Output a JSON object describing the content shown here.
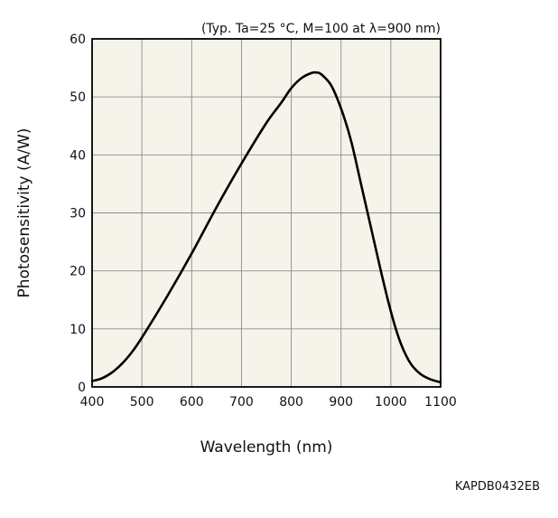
{
  "chart_data": {
    "type": "line",
    "condition_note": "(Typ. Ta=25 °C, M=100 at λ=900 nm)",
    "xlabel": "Wavelength (nm)",
    "ylabel": "Photosensitivity (A/W)",
    "xlim": [
      400,
      1100
    ],
    "ylim": [
      0,
      60
    ],
    "x_ticks": [
      400,
      500,
      600,
      700,
      800,
      900,
      1000,
      1100
    ],
    "y_ticks": [
      0,
      10,
      20,
      30,
      40,
      50,
      60
    ],
    "grid": true,
    "plot_background": "#f6f3ea",
    "line_color": "#000000",
    "series": [
      {
        "x": [
          400,
          420,
          440,
          460,
          480,
          500,
          550,
          600,
          650,
          700,
          750,
          780,
          800,
          820,
          840,
          850,
          860,
          880,
          900,
          920,
          940,
          960,
          980,
          1000,
          1020,
          1040,
          1060,
          1080,
          1100
        ],
        "y": [
          1.0,
          1.5,
          2.5,
          4.0,
          6.0,
          8.5,
          15.5,
          23.0,
          31.0,
          38.5,
          45.5,
          49.0,
          51.5,
          53.2,
          54.1,
          54.2,
          53.9,
          52.0,
          48.0,
          42.5,
          35.0,
          27.5,
          20.0,
          13.0,
          7.5,
          4.0,
          2.2,
          1.3,
          0.8
        ]
      }
    ]
  },
  "figure_code": "KAPDB0432EB"
}
